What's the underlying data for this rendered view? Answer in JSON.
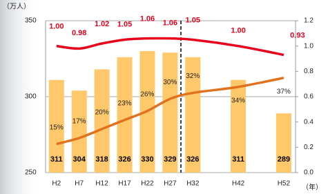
{
  "chart_data": {
    "type": "combo",
    "y_unit": "（万人）",
    "x_unit": "（年）",
    "x": [
      2,
      7,
      12,
      17,
      22,
      27,
      32,
      42,
      52
    ],
    "xlim": [
      -0.4,
      54.6
    ],
    "xticks": [
      {
        "value": 2,
        "label": "H2"
      },
      {
        "value": 7,
        "label": "H7"
      },
      {
        "value": 12,
        "label": "H12"
      },
      {
        "value": 17,
        "label": "H17"
      },
      {
        "value": 22,
        "label": "H22"
      },
      {
        "value": 27,
        "label": "H27"
      },
      {
        "value": 32,
        "label": "H32"
      },
      {
        "value": 42,
        "label": "H42"
      },
      {
        "value": 52,
        "label": "H52"
      }
    ],
    "ylim": [
      250,
      350
    ],
    "yticks": [
      250,
      300,
      350
    ],
    "y2lim": [
      0,
      1.2
    ],
    "y2ticks": [
      {
        "value": 0,
        "label": "0.0"
      },
      0.2,
      0.4,
      0.6,
      0.8,
      {
        "value": 1,
        "label": "1.0"
      },
      1.2
    ],
    "y3lim": [
      5.5,
      56
    ],
    "series": [
      {
        "type": "bar",
        "color": "#ffc96b",
        "values": [
          311,
          304,
          318,
          326,
          330,
          329,
          326,
          311,
          289
        ]
      },
      {
        "type": "line",
        "axis": "y2",
        "color": "#e8001c",
        "values": [
          1.0,
          0.98,
          1.02,
          1.05,
          1.06,
          1.06,
          1.05,
          1.0,
          0.93
        ],
        "value_labels": [
          "1.00",
          "0.98",
          "1.02",
          "1.05",
          "1.06",
          "1.06",
          "1.05",
          "1.00",
          "0.93"
        ]
      },
      {
        "type": "line",
        "axis": "y3",
        "color": "#e2711d",
        "values": [
          15,
          17,
          20,
          23,
          26,
          30,
          32,
          34,
          37
        ],
        "value_labels": [
          "15%",
          "17%",
          "20%",
          "23%",
          "26%",
          "30%",
          "32%",
          "34%",
          "37%"
        ]
      }
    ]
  }
}
